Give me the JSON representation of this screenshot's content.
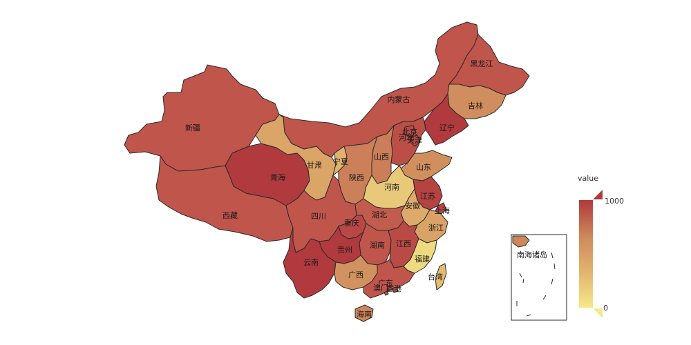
{
  "map": {
    "region": "China",
    "provinces": [
      {
        "key": "xinjiang",
        "name": "新疆",
        "value": 760
      },
      {
        "key": "xizang",
        "name": "西藏",
        "value": 760
      },
      {
        "key": "qinghai",
        "name": "青海",
        "value": 1000
      },
      {
        "key": "gansu",
        "name": "甘肃",
        "value": 330
      },
      {
        "key": "neimenggu",
        "name": "内蒙古",
        "value": 760
      },
      {
        "key": "heilongjiang",
        "name": "黑龙江",
        "value": 760
      },
      {
        "key": "jilin",
        "name": "吉林",
        "value": 480
      },
      {
        "key": "liaoning",
        "name": "辽宁",
        "value": 1000
      },
      {
        "key": "hebei",
        "name": "河北",
        "value": 820
      },
      {
        "key": "beijing",
        "name": "北京",
        "value": 850
      },
      {
        "key": "tianjin",
        "name": "天津",
        "value": 880
      },
      {
        "key": "shanxi",
        "name": "山西",
        "value": 560
      },
      {
        "key": "ningxia",
        "name": "宁夏",
        "value": 250
      },
      {
        "key": "shaanxi",
        "name": "陕西",
        "value": 550
      },
      {
        "key": "shandong",
        "name": "山东",
        "value": 470
      },
      {
        "key": "henan",
        "name": "河南",
        "value": 150
      },
      {
        "key": "jiangsu",
        "name": "江苏",
        "value": 920
      },
      {
        "key": "anhui",
        "name": "安徽",
        "value": 300
      },
      {
        "key": "shanghai",
        "name": "上海",
        "value": 900
      },
      {
        "key": "zhejiang",
        "name": "浙江",
        "value": 350
      },
      {
        "key": "sichuan",
        "name": "四川",
        "value": 760
      },
      {
        "key": "chongqing",
        "name": "重庆",
        "value": 880
      },
      {
        "key": "hubei",
        "name": "湖北",
        "value": 720
      },
      {
        "key": "hunan",
        "name": "湖南",
        "value": 760
      },
      {
        "key": "jiangxi",
        "name": "江西",
        "value": 860
      },
      {
        "key": "fujian",
        "name": "福建",
        "value": 70
      },
      {
        "key": "guizhou",
        "name": "贵州",
        "value": 1000
      },
      {
        "key": "yunnan",
        "name": "云南",
        "value": 1000
      },
      {
        "key": "guangxi",
        "name": "广西",
        "value": 450
      },
      {
        "key": "guangdong",
        "name": "广东",
        "value": 760
      },
      {
        "key": "hongkong",
        "name": "香港",
        "value": 760
      },
      {
        "key": "macau",
        "name": "澳门",
        "value": 760
      },
      {
        "key": "hainan",
        "name": "海南",
        "value": 520
      },
      {
        "key": "taiwan",
        "name": "台湾",
        "value": 200
      }
    ],
    "inset_label": "南海诸岛"
  },
  "visual_map": {
    "title": "value",
    "max_label": "1000",
    "min_label": "0",
    "min": 0,
    "max": 1000,
    "colors": [
      "#f5e98a",
      "#e0b26d",
      "#cf8a5c",
      "#c0564c",
      "#b03a3e"
    ]
  }
}
